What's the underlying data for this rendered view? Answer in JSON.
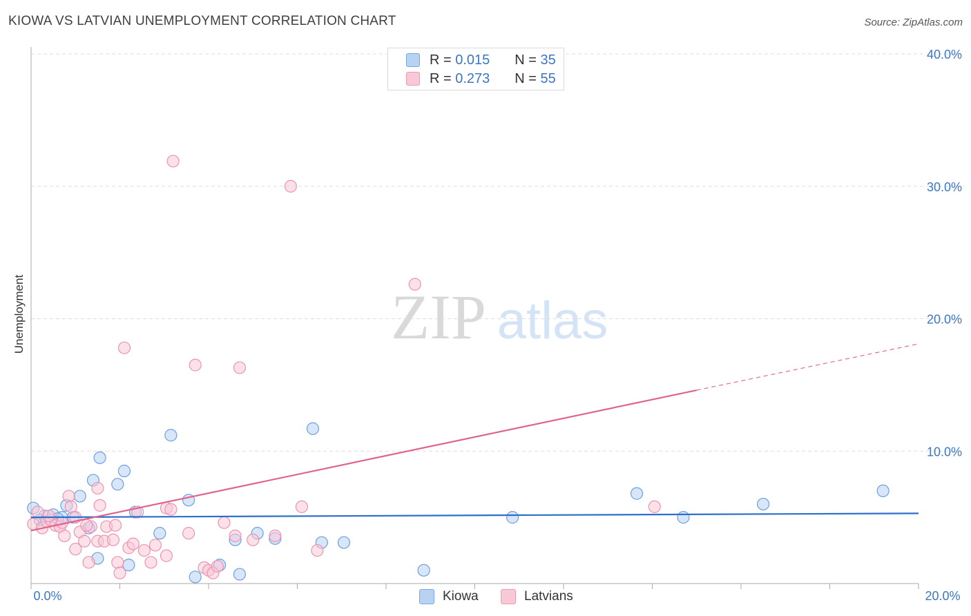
{
  "title": "KIOWA VS LATVIAN UNEMPLOYMENT CORRELATION CHART",
  "source": "Source: ZipAtlas.com",
  "watermark": {
    "zip": "ZIP",
    "atlas": "atlas"
  },
  "legend": {
    "rows": [
      {
        "r_label": "R = ",
        "r_value": "0.015",
        "n_label": "N = ",
        "n_value": "35"
      },
      {
        "r_label": "R = ",
        "r_value": "0.273",
        "n_label": "N = ",
        "n_value": "55"
      }
    ]
  },
  "bottom_legend": {
    "kiowa": "Kiowa",
    "latvians": "Latvians"
  },
  "colors": {
    "kiowa_fill": "#b8d2f4",
    "kiowa_stroke": "#6e9fdc",
    "kiowa_line": "#2c6fca",
    "latvians_fill": "#f9c8d7",
    "latvians_stroke": "#ec93b1",
    "latvians_line": "#e0628f",
    "axis_text": "#3b76c4",
    "grid": "#dddddd"
  },
  "chart_data": {
    "type": "scatter",
    "title": "KIOWA VS LATVIAN UNEMPLOYMENT CORRELATION CHART",
    "xlabel": "",
    "ylabel": "Unemployment",
    "xlim": [
      0,
      20
    ],
    "ylim": [
      0,
      40
    ],
    "x_tick_labels": [
      "0.0%",
      "20.0%"
    ],
    "y_ticks": [
      10,
      20,
      30,
      40
    ],
    "y_tick_labels": [
      "10.0%",
      "20.0%",
      "30.0%",
      "40.0%"
    ],
    "series": [
      {
        "name": "Kiowa",
        "r": 0.015,
        "n": 35,
        "trend": {
          "x0": 0,
          "y0": 5.0,
          "x1": 20,
          "y1": 5.3
        },
        "points": [
          [
            0.05,
            5.7
          ],
          [
            0.3,
            5.1
          ],
          [
            0.5,
            5.2
          ],
          [
            0.7,
            5.0
          ],
          [
            0.8,
            5.9
          ],
          [
            0.95,
            5.0
          ],
          [
            1.1,
            6.6
          ],
          [
            1.3,
            4.2
          ],
          [
            1.4,
            7.8
          ],
          [
            1.5,
            1.9
          ],
          [
            1.55,
            9.5
          ],
          [
            1.95,
            7.5
          ],
          [
            2.1,
            8.5
          ],
          [
            2.2,
            1.4
          ],
          [
            2.35,
            5.4
          ],
          [
            2.9,
            3.8
          ],
          [
            3.15,
            11.2
          ],
          [
            3.55,
            6.3
          ],
          [
            3.7,
            0.5
          ],
          [
            4.25,
            1.4
          ],
          [
            4.6,
            3.3
          ],
          [
            4.7,
            0.7
          ],
          [
            5.1,
            3.8
          ],
          [
            5.5,
            3.4
          ],
          [
            6.35,
            11.7
          ],
          [
            6.55,
            3.1
          ],
          [
            7.05,
            3.1
          ],
          [
            8.85,
            1.0
          ],
          [
            10.85,
            5.0
          ],
          [
            13.65,
            6.8
          ],
          [
            14.7,
            5.0
          ],
          [
            16.5,
            6.0
          ],
          [
            19.2,
            7.0
          ],
          [
            0.2,
            4.8
          ],
          [
            0.6,
            4.9
          ]
        ]
      },
      {
        "name": "Latvians",
        "r": 0.273,
        "n": 55,
        "trend": {
          "x0": 0,
          "y0": 4.0,
          "x1": 15.0,
          "y1": 14.6,
          "dash_x1": 20,
          "dash_y1": 18.1
        },
        "points": [
          [
            0.05,
            4.5
          ],
          [
            0.15,
            5.4
          ],
          [
            0.25,
            4.2
          ],
          [
            0.35,
            4.7
          ],
          [
            0.45,
            4.8
          ],
          [
            0.55,
            4.4
          ],
          [
            0.65,
            4.3
          ],
          [
            0.75,
            3.6
          ],
          [
            0.85,
            6.6
          ],
          [
            0.9,
            5.8
          ],
          [
            1.0,
            5.0
          ],
          [
            1.0,
            2.6
          ],
          [
            1.1,
            3.9
          ],
          [
            1.2,
            3.2
          ],
          [
            1.3,
            1.6
          ],
          [
            1.35,
            4.3
          ],
          [
            1.5,
            3.2
          ],
          [
            1.5,
            7.2
          ],
          [
            1.55,
            5.9
          ],
          [
            1.65,
            3.2
          ],
          [
            1.7,
            4.3
          ],
          [
            1.85,
            3.3
          ],
          [
            1.9,
            4.4
          ],
          [
            1.95,
            1.6
          ],
          [
            2.0,
            0.8
          ],
          [
            2.1,
            17.8
          ],
          [
            2.2,
            2.7
          ],
          [
            2.3,
            3.0
          ],
          [
            2.4,
            5.4
          ],
          [
            2.55,
            2.5
          ],
          [
            2.7,
            1.6
          ],
          [
            2.8,
            2.9
          ],
          [
            3.05,
            2.1
          ],
          [
            3.05,
            5.7
          ],
          [
            3.15,
            5.6
          ],
          [
            3.2,
            31.9
          ],
          [
            3.55,
            3.8
          ],
          [
            3.7,
            16.5
          ],
          [
            3.9,
            1.2
          ],
          [
            4.0,
            1.0
          ],
          [
            4.1,
            0.8
          ],
          [
            4.2,
            1.3
          ],
          [
            4.35,
            4.6
          ],
          [
            4.6,
            3.6
          ],
          [
            4.7,
            16.3
          ],
          [
            5.0,
            3.3
          ],
          [
            5.5,
            3.6
          ],
          [
            5.85,
            30.0
          ],
          [
            6.1,
            5.8
          ],
          [
            6.45,
            2.5
          ],
          [
            8.65,
            22.6
          ],
          [
            14.05,
            5.8
          ],
          [
            0.4,
            5.1
          ],
          [
            0.7,
            4.6
          ],
          [
            1.25,
            4.4
          ]
        ]
      }
    ]
  }
}
